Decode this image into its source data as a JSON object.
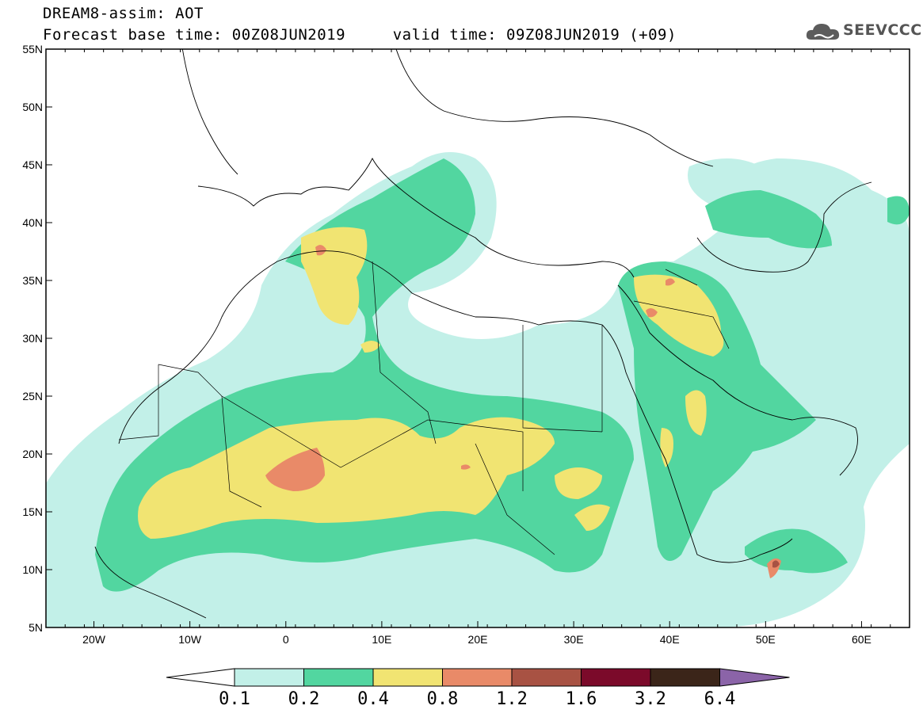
{
  "title": {
    "line1": "DREAM8-assim: AOT",
    "line2": "Forecast base time: 00Z08JUN2019     valid time: 09Z08JUN2019 (+09)"
  },
  "logo": {
    "text": "SEEVCCC",
    "icon": "cloud-icon"
  },
  "map": {
    "lon_range": [
      -25,
      65
    ],
    "lat_range": [
      5,
      55
    ],
    "lon_ticks": [
      "20W",
      "10W",
      "0",
      "10E",
      "20E",
      "30E",
      "40E",
      "50E",
      "60E"
    ],
    "lat_ticks": [
      "55N",
      "50N",
      "45N",
      "40N",
      "35N",
      "30N",
      "25N",
      "20N",
      "15N",
      "10N",
      "5N"
    ]
  },
  "colorbar": {
    "labels": [
      "0.1",
      "0.2",
      "0.4",
      "0.8",
      "1.2",
      "1.6",
      "3.2",
      "6.4"
    ],
    "colors": [
      "#c2f0e8",
      "#52d6a0",
      "#f1e472",
      "#e98a68",
      "#a85243",
      "#7b0a2a",
      "#3b2519",
      "#8b64a8"
    ]
  }
}
